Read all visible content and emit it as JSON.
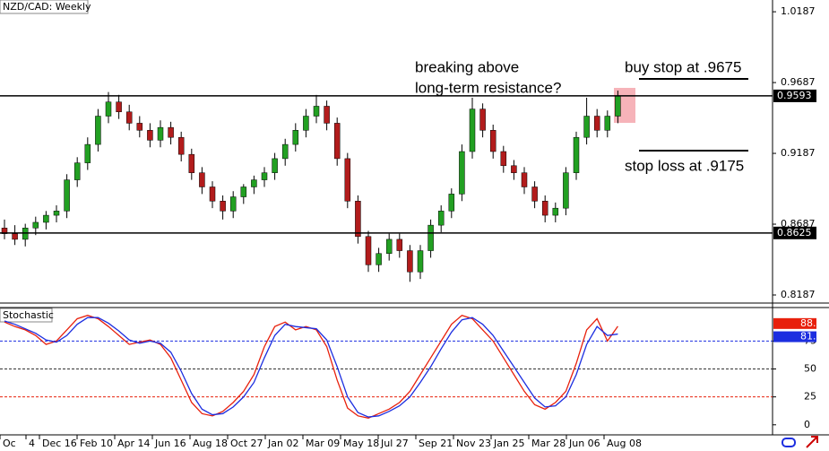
{
  "chart_data": [
    {
      "type": "candlestick",
      "title": "NZD/CAD: Weekly",
      "x_labels": [
        "Oc",
        "4",
        "Dec 16",
        "Feb 10",
        "Apr 14",
        "Jun 16",
        "Aug 18",
        "Oct 27",
        "Jan 02",
        "Mar 09",
        "May 18",
        "Jul 27",
        "Sep 21",
        "Nov 23",
        "Jan 25",
        "Mar 28",
        "Jun 06",
        "Aug 08"
      ],
      "open": [
        0.866,
        0.862,
        0.858,
        0.866,
        0.87,
        0.875,
        0.878,
        0.9,
        0.912,
        0.925,
        0.945,
        0.955,
        0.948,
        0.94,
        0.935,
        0.928,
        0.937,
        0.93,
        0.918,
        0.905,
        0.895,
        0.885,
        0.878,
        0.888,
        0.895,
        0.9,
        0.905,
        0.915,
        0.925,
        0.935,
        0.945,
        0.952,
        0.94,
        0.915,
        0.885,
        0.86,
        0.84,
        0.848,
        0.858,
        0.85,
        0.835,
        0.85,
        0.868,
        0.878,
        0.89,
        0.92,
        0.95,
        0.935,
        0.92,
        0.91,
        0.905,
        0.895,
        0.885,
        0.875,
        0.88,
        0.905,
        0.93,
        0.945,
        0.935,
        0.945
      ],
      "high": [
        0.872,
        0.868,
        0.869,
        0.874,
        0.878,
        0.882,
        0.904,
        0.916,
        0.93,
        0.95,
        0.962,
        0.96,
        0.953,
        0.945,
        0.94,
        0.942,
        0.941,
        0.934,
        0.922,
        0.909,
        0.899,
        0.889,
        0.892,
        0.897,
        0.903,
        0.909,
        0.919,
        0.929,
        0.94,
        0.95,
        0.96,
        0.956,
        0.944,
        0.919,
        0.889,
        0.864,
        0.852,
        0.862,
        0.862,
        0.854,
        0.854,
        0.872,
        0.882,
        0.894,
        0.925,
        0.958,
        0.954,
        0.939,
        0.924,
        0.914,
        0.909,
        0.899,
        0.889,
        0.884,
        0.909,
        0.934,
        0.958,
        0.95,
        0.949,
        0.963
      ],
      "low": [
        0.858,
        0.854,
        0.853,
        0.861,
        0.865,
        0.87,
        0.873,
        0.895,
        0.907,
        0.92,
        0.94,
        0.943,
        0.935,
        0.93,
        0.923,
        0.923,
        0.925,
        0.913,
        0.9,
        0.89,
        0.88,
        0.872,
        0.873,
        0.883,
        0.89,
        0.895,
        0.9,
        0.91,
        0.92,
        0.93,
        0.94,
        0.935,
        0.91,
        0.88,
        0.855,
        0.835,
        0.835,
        0.843,
        0.845,
        0.828,
        0.83,
        0.845,
        0.863,
        0.873,
        0.885,
        0.915,
        0.93,
        0.915,
        0.905,
        0.9,
        0.89,
        0.88,
        0.87,
        0.87,
        0.875,
        0.9,
        0.925,
        0.93,
        0.93,
        0.94
      ],
      "close": [
        0.862,
        0.858,
        0.866,
        0.87,
        0.875,
        0.878,
        0.9,
        0.912,
        0.925,
        0.945,
        0.955,
        0.948,
        0.94,
        0.935,
        0.928,
        0.937,
        0.93,
        0.918,
        0.905,
        0.895,
        0.885,
        0.878,
        0.888,
        0.895,
        0.9,
        0.905,
        0.915,
        0.925,
        0.935,
        0.945,
        0.952,
        0.94,
        0.915,
        0.885,
        0.86,
        0.84,
        0.848,
        0.858,
        0.85,
        0.835,
        0.85,
        0.868,
        0.878,
        0.89,
        0.92,
        0.95,
        0.935,
        0.92,
        0.91,
        0.905,
        0.895,
        0.885,
        0.875,
        0.88,
        0.905,
        0.93,
        0.945,
        0.935,
        0.945,
        0.9593
      ],
      "up_color": "#22a022",
      "down_color": "#b21c1c",
      "ylim": [
        0.813,
        1.027
      ],
      "yticks": [
        0.8187,
        0.8687,
        0.9187,
        0.9687,
        1.0187
      ],
      "price_levels": [
        0.9593,
        0.8625
      ],
      "annotations": [
        "breaking above",
        "long-term resistance?",
        "buy stop at .9675",
        "stop loss at .9175"
      ]
    },
    {
      "type": "line",
      "title": "Stochastic",
      "series": [
        {
          "color": "#e8200c",
          "values": [
            92,
            88,
            85,
            80,
            72,
            75,
            85,
            95,
            98,
            95,
            88,
            80,
            72,
            74,
            76,
            72,
            60,
            40,
            20,
            10,
            8,
            12,
            20,
            30,
            45,
            70,
            88,
            92,
            85,
            88,
            85,
            70,
            40,
            15,
            8,
            6,
            10,
            14,
            20,
            30,
            45,
            60,
            75,
            90,
            98,
            95,
            85,
            75,
            60,
            45,
            30,
            18,
            14,
            20,
            30,
            55,
            85,
            95,
            75,
            88.27
          ]
        },
        {
          "color": "#1c2ee0",
          "values": [
            93,
            90,
            86,
            82,
            76,
            74,
            80,
            90,
            96,
            96,
            91,
            84,
            76,
            73,
            75,
            73,
            65,
            48,
            28,
            14,
            9,
            10,
            16,
            25,
            38,
            60,
            80,
            90,
            88,
            87,
            86,
            76,
            52,
            25,
            11,
            7,
            8,
            12,
            17,
            25,
            38,
            52,
            68,
            83,
            94,
            96,
            90,
            80,
            66,
            52,
            38,
            24,
            16,
            17,
            25,
            45,
            72,
            88,
            80,
            81.27
          ]
        }
      ],
      "ylim": [
        -9,
        105
      ],
      "yticks": [
        0,
        25,
        50,
        75
      ],
      "levels": [
        {
          "value": 75,
          "color": "#1c2ee0"
        },
        {
          "value": 50,
          "color": "#333333"
        },
        {
          "value": 25,
          "color": "#e8200c"
        }
      ]
    }
  ]
}
